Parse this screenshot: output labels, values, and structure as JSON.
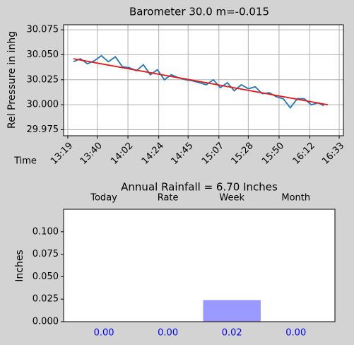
{
  "chart_data": [
    {
      "type": "line",
      "title": "Barometer 30.0 m=-0.015",
      "ylabel": "Rel Pressure in inhg",
      "xlabel": "Time",
      "series": [
        {
          "color": "#1f77b4",
          "x": [
            "13:23",
            "13:28",
            "13:33",
            "13:38",
            "13:43",
            "13:48",
            "13:53",
            "13:58",
            "14:03",
            "14:08",
            "14:13",
            "14:18",
            "14:23",
            "14:28",
            "14:33",
            "14:38",
            "14:43",
            "14:48",
            "14:53",
            "14:58",
            "15:03",
            "15:08",
            "15:13",
            "15:18",
            "15:23",
            "15:28",
            "15:33",
            "15:38",
            "15:43",
            "15:48",
            "15:53",
            "15:58",
            "16:03",
            "16:08",
            "16:13",
            "16:18",
            "16:22"
          ],
          "values": [
            30.043,
            30.046,
            30.041,
            30.044,
            30.049,
            30.043,
            30.048,
            30.038,
            30.037,
            30.034,
            30.04,
            30.03,
            30.035,
            30.025,
            30.03,
            30.027,
            30.025,
            30.024,
            30.022,
            30.02,
            30.025,
            30.017,
            30.022,
            30.014,
            30.02,
            30.016,
            30.018,
            30.011,
            30.012,
            30.008,
            30.006,
            29.997,
            30.006,
            30.006,
            30.0,
            30.002,
            29.999
          ]
        },
        {
          "color": "#e31a1c",
          "x": [
            "13:23",
            "16:25"
          ],
          "values": [
            30.046,
            30.0
          ]
        }
      ],
      "xlim": [
        "13:16",
        "16:36"
      ],
      "xticks": [
        "13:19",
        "13:40",
        "14:02",
        "14:24",
        "14:45",
        "15:07",
        "15:28",
        "15:50",
        "16:12",
        "16:33"
      ],
      "ylim": [
        29.969,
        30.08
      ],
      "yticks": [
        29.975,
        {
          "value": 30,
          "label": "30.000"
        },
        30.025,
        {
          "value": 30.05,
          "label": "30.050"
        },
        30.075
      ],
      "grid": true
    },
    {
      "type": "bar",
      "title": "Annual Rainfall =  6.70 Inches",
      "ylabel": "Inches",
      "categories": [
        "Today",
        "Rate",
        "Week",
        "Month"
      ],
      "values": [
        0,
        0,
        0.024,
        0
      ],
      "value_labels": [
        "0.00",
        "0.00",
        "0.02",
        "0.00"
      ],
      "color": "#9999ff",
      "value_label_color": "#0000ff",
      "ylim": [
        0,
        0.125
      ],
      "yticks": [
        {
          "value": 0,
          "label": "0.000"
        },
        {
          "value": 0.025,
          "label": "0.025"
        },
        {
          "value": 0.05,
          "label": "0.050"
        },
        {
          "value": 0.075,
          "label": "0.075"
        },
        {
          "value": 0.1,
          "label": "0.100"
        }
      ],
      "grid": false
    }
  ]
}
